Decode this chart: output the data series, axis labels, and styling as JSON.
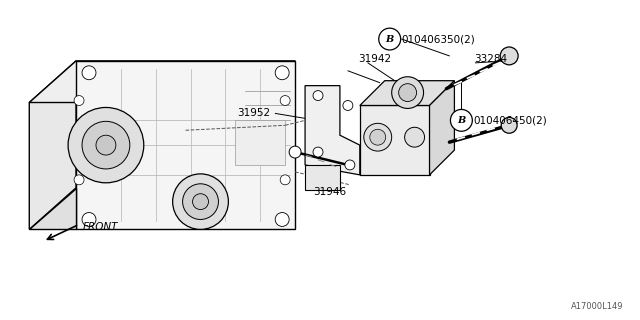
{
  "background_color": "#ffffff",
  "line_color": "#000000",
  "fig_width": 6.4,
  "fig_height": 3.2,
  "dpi": 100,
  "watermark": "A17000L149",
  "label_B1_circle": "B",
  "label_B1_text": "010406350(2)",
  "label_B2_circle": "B",
  "label_B2_text": "010406450(2)",
  "label_31942": "31942",
  "label_33284": "33284",
  "label_31952": "31952",
  "label_31946": "31946",
  "label_front": "FRONT"
}
